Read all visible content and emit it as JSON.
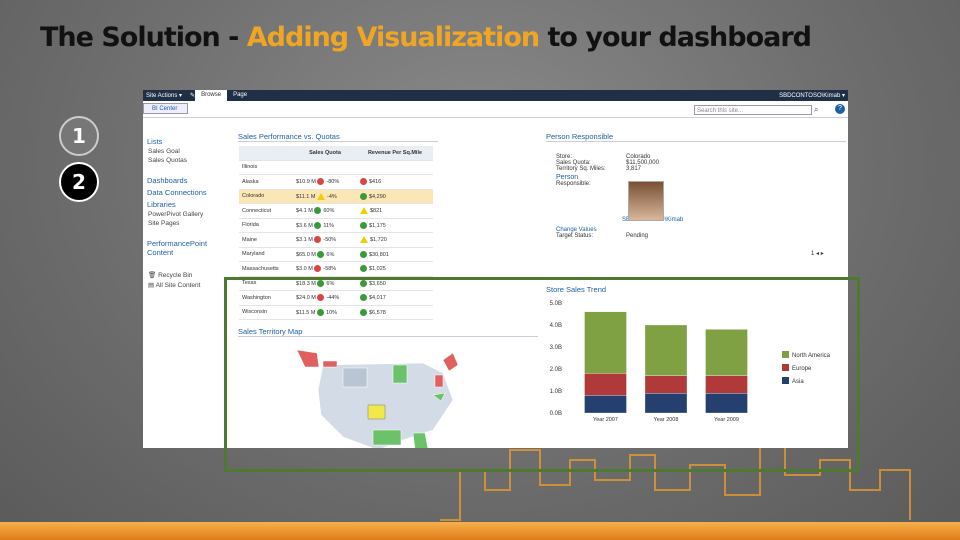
{
  "slide": {
    "title_part1": "The Solution - ",
    "title_highlight": "Adding Visualization",
    "title_part2": " to your dashboard",
    "step1": "1",
    "step2": "2",
    "accent_color": "#f0a623",
    "highlight_box_color": "#4d7a2e"
  },
  "ribbon": {
    "site_actions": "Site Actions ▾",
    "tab_browse": "Browse",
    "tab_page": "Page",
    "user": "SBDCONTOSO\\Kimab ▾"
  },
  "toolbar": {
    "bi_center": "BI Center",
    "search_placeholder": "Search this site...",
    "help": "?"
  },
  "nav": {
    "lists": "Lists",
    "lists_items": [
      "Sales Goal",
      "Sales Quotas"
    ],
    "dashboards": "Dashboards",
    "data_connections": "Data Connections",
    "libraries": "Libraries",
    "libraries_items": [
      "PowerPivot Gallery",
      "Site Pages"
    ],
    "performancepoint": "PerformancePoint Content",
    "recycle_bin": "Recycle Bin",
    "all_site_content": "All Site Content"
  },
  "sales_performance": {
    "heading": "Sales Performance vs. Quotas",
    "col_quota": "Sales Quota",
    "col_rev": "Revenue Per Sq.Mile",
    "rows": [
      {
        "name": "Illinois",
        "val": "",
        "q": "",
        "qs": "",
        "r": "",
        "rs": ""
      },
      {
        "name": "Alaska",
        "val": "$10.9 M",
        "q": "-80%",
        "qs": "red",
        "r": "$416",
        "rs": "red"
      },
      {
        "name": "Colorado",
        "val": "$11.1 M",
        "q": "-4%",
        "qs": "yellow",
        "r": "$4,290",
        "rs": "green"
      },
      {
        "name": "Connecticut",
        "val": "$4.1 M",
        "q": "60%",
        "qs": "green",
        "r": "$821",
        "rs": "yellow"
      },
      {
        "name": "Florida",
        "val": "$3.6 M",
        "q": "11%",
        "qs": "green",
        "r": "$1,175",
        "rs": "green"
      },
      {
        "name": "Maine",
        "val": "$3.1 M",
        "q": "-50%",
        "qs": "red",
        "r": "$1,720",
        "rs": "yellow"
      },
      {
        "name": "Maryland",
        "val": "$65.0 M",
        "q": "6%",
        "qs": "green",
        "r": "$30,801",
        "rs": "green"
      },
      {
        "name": "Massachusetts",
        "val": "$3.0 M",
        "q": "-58%",
        "qs": "red",
        "r": "$1,025",
        "rs": "green"
      },
      {
        "name": "Texas",
        "val": "$18.3 M",
        "q": "6%",
        "qs": "green",
        "r": "$3,650",
        "rs": "green"
      },
      {
        "name": "Washington",
        "val": "$24.0 M",
        "q": "-44%",
        "qs": "red",
        "r": "$4,017",
        "rs": "green"
      },
      {
        "name": "Wisconsin",
        "val": "$11.5 M",
        "q": "10%",
        "qs": "green",
        "r": "$6,578",
        "rs": "green"
      }
    ]
  },
  "person_responsible": {
    "heading": "Person Responsible",
    "store_label": "Store:",
    "store_value": "Colorado",
    "quota_label": "Sales Quota:",
    "quota_value": "$11,500,000",
    "territory_label": "Territory Sq. Miles:",
    "territory_value": "3,817",
    "person_heading": "Person",
    "responsible_label": "Responsible:",
    "person_name": "SBDCONTOSO\\Kimab",
    "change_values": "Change Values",
    "target_status_label": "Target Status:",
    "target_status_value": "Pending",
    "pager": "1"
  },
  "map": {
    "heading": "Sales Territory Map"
  },
  "chart_data": {
    "type": "bar",
    "title": "Store Sales Trend",
    "categories": [
      "Year 2007",
      "Year 2008",
      "Year 2009"
    ],
    "ylim": [
      0,
      5.0
    ],
    "yticks": [
      "0.0B",
      "1.0B",
      "2.0B",
      "3.0B",
      "4.0B",
      "5.0B"
    ],
    "stacked": true,
    "legend_position": "right",
    "series": [
      {
        "name": "North America",
        "color": "#7fa043",
        "values": [
          2.8,
          2.3,
          2.1
        ]
      },
      {
        "name": "Europe",
        "color": "#b03a3a",
        "values": [
          1.0,
          0.8,
          0.8
        ]
      },
      {
        "name": "Asia",
        "color": "#253f6e",
        "values": [
          0.8,
          0.9,
          0.9
        ]
      }
    ]
  }
}
